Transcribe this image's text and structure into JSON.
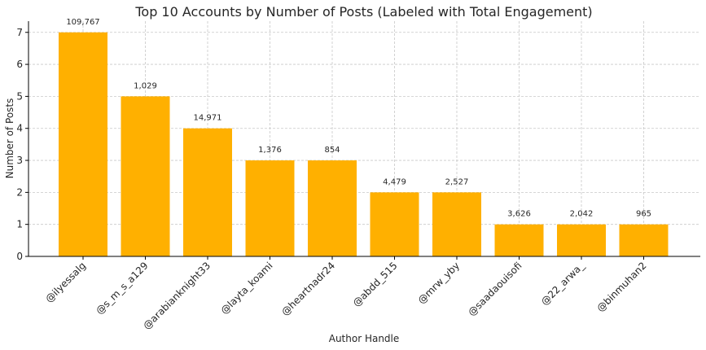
{
  "chart_data": {
    "type": "bar",
    "title": "Top 10 Accounts by Number of Posts (Labeled with Total Engagement)",
    "xlabel": "Author Handle",
    "ylabel": "Number of Posts",
    "categories": [
      "@ilyessalg",
      "@s_m_s_a129",
      "@arabianknight33",
      "@layta_koami",
      "@heartnadr24",
      "@abdd_515",
      "@mrw_yby",
      "@saadaouisofi",
      "@22_arwa_",
      "@binmuhan2"
    ],
    "values": [
      7,
      5,
      4,
      3,
      3,
      2,
      2,
      1,
      1,
      1
    ],
    "data_labels": [
      "109,767",
      "1,029",
      "14,971",
      "1,376",
      "854",
      "4,479",
      "2,527",
      "3,626",
      "2,042",
      "965"
    ],
    "ylim": [
      0,
      7.35
    ],
    "yticks": [
      0,
      1,
      2,
      3,
      4,
      5,
      6,
      7
    ],
    "grid": true,
    "bar_color": "#ffb000"
  }
}
